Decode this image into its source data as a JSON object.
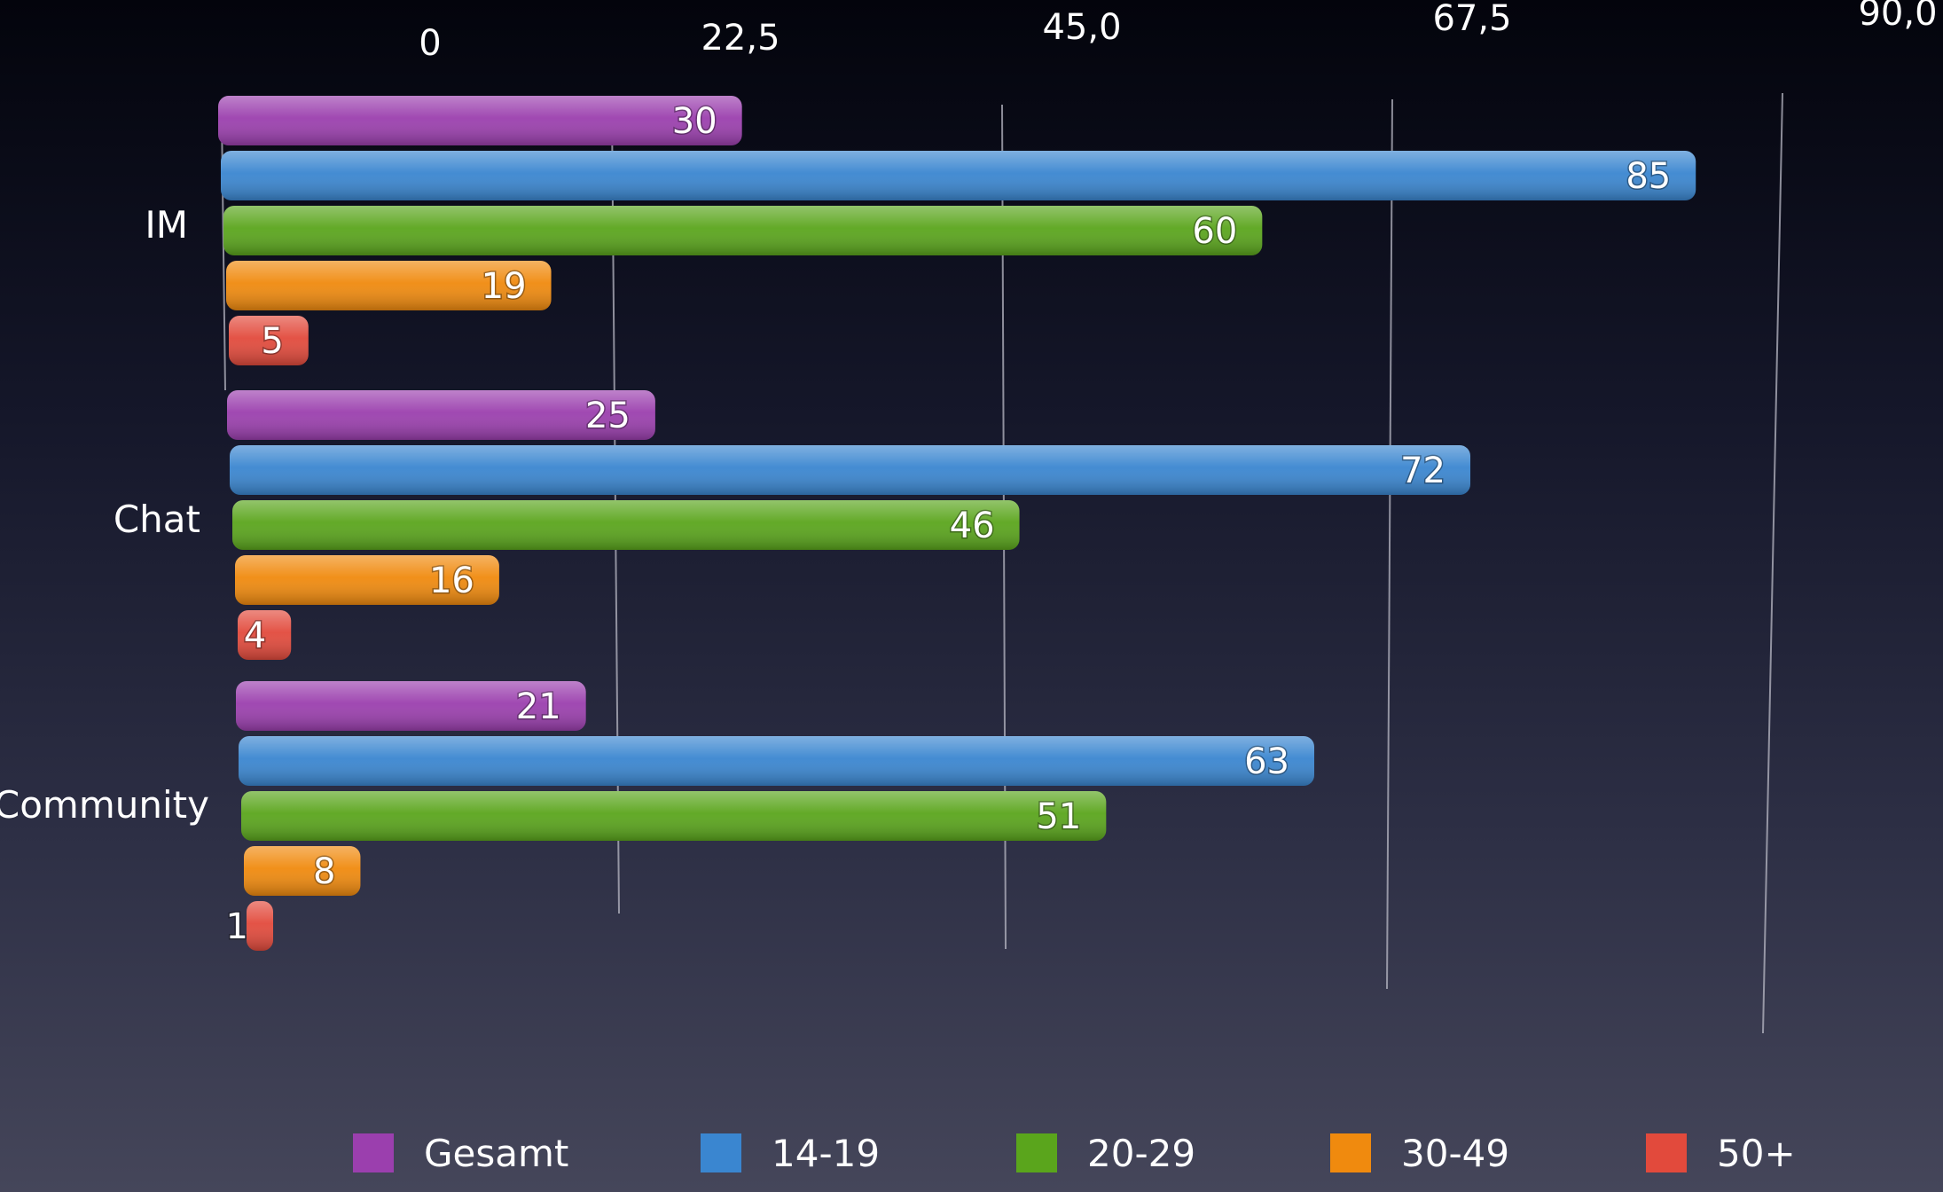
{
  "chart_data": {
    "type": "bar",
    "orientation": "horizontal",
    "categories": [
      "IM",
      "Chat",
      "Community"
    ],
    "series": [
      {
        "name": "Gesamt",
        "color": "#9b3fae",
        "values": [
          30,
          25,
          21
        ]
      },
      {
        "name": "14-19",
        "color": "#3a86d0",
        "values": [
          85,
          72,
          63
        ]
      },
      {
        "name": "20-29",
        "color": "#5aa51c",
        "values": [
          60,
          46,
          51
        ]
      },
      {
        "name": "30-49",
        "color": "#f08a0e",
        "values": [
          19,
          16,
          8
        ]
      },
      {
        "name": "50+",
        "color": "#e24a3c",
        "values": [
          5,
          4,
          1
        ]
      }
    ],
    "axis_ticks": [
      "0",
      "22,5",
      "45,0",
      "67,5",
      "90,0"
    ],
    "xlim": [
      0,
      90
    ],
    "grid": true,
    "legend_position": "bottom"
  }
}
